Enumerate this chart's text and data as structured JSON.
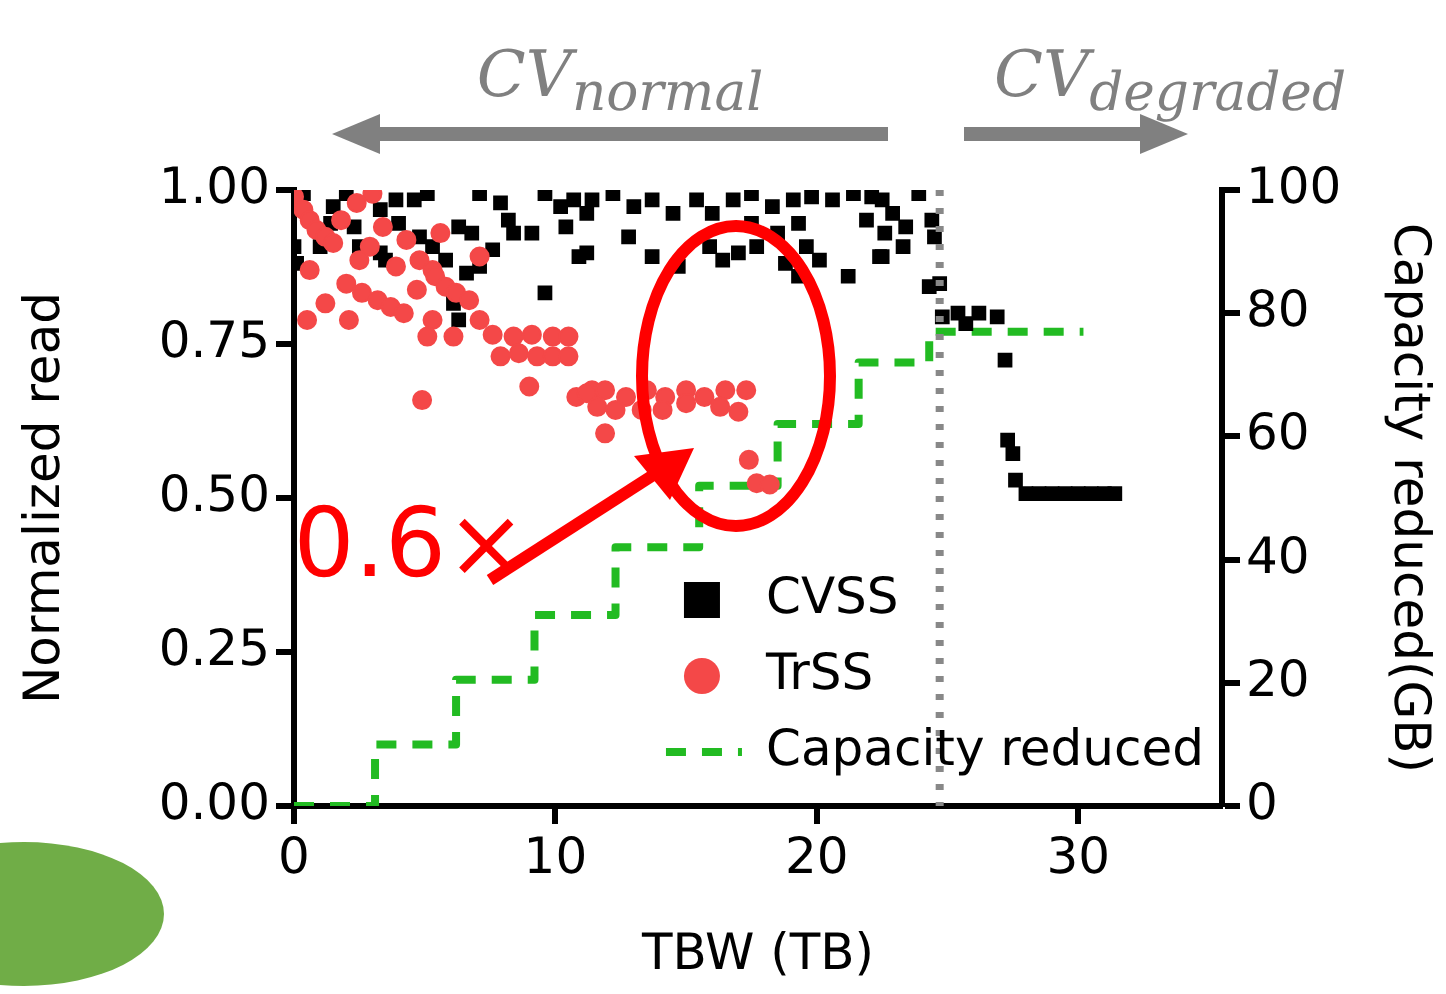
{
  "chart_data": {
    "type": "scatter",
    "xlabel": "TBW (TB)",
    "ylabel": "Normalized read",
    "y2label": "Capacity reduced(GB)",
    "annotations": [
      "CV$_{normal}$",
      "CV$_{degraded}$",
      "0.6×"
    ],
    "xlim": [
      0,
      35.5
    ],
    "xticks": [
      0,
      10,
      20,
      30
    ],
    "ylim": [
      0,
      1
    ],
    "yticks": [
      {
        "value": 0,
        "label": "0.00"
      },
      {
        "value": 0.25,
        "label": "0.25"
      },
      {
        "value": 0.5,
        "label": "0.50"
      },
      {
        "value": 0.75,
        "label": "0.75"
      },
      {
        "value": 1,
        "label": "1.00"
      }
    ],
    "y2lim": [
      0,
      100
    ],
    "y2ticks": [
      0,
      20,
      40,
      60,
      80,
      100
    ],
    "grid": false,
    "legend": "bottom right",
    "ref_lines": [
      {
        "axis": "x",
        "value": 24.7,
        "color": "#888888",
        "line_style": "dotted"
      }
    ],
    "series": [
      {
        "name": "CVSS",
        "type": "scatter",
        "color": "#000000",
        "marker": "square",
        "x": [
          0.36,
          0,
          0.1,
          1.5,
          2.0,
          2.3,
          3.3,
          3.9,
          4.6,
          5.1,
          4.0,
          4.8,
          3.3,
          3.5,
          2.5,
          1.0,
          1.4,
          5.3,
          5.8,
          6.3,
          6.8,
          7.1,
          7.9,
          8.2,
          7.1,
          7.6,
          6.6,
          6.3,
          6.1,
          9.6,
          10.2,
          10.7,
          11.2,
          10.4,
          10.9,
          9.6,
          9.1,
          8.4,
          11.4,
          12.2,
          13.0,
          13.7,
          14.5,
          15.4,
          16.0,
          16.8,
          17.5,
          18.3,
          19.1,
          19.8,
          20.6,
          21.4,
          22.1,
          22.9,
          11.2,
          12.8,
          13.7,
          14.7,
          15.9,
          16.4,
          17.0,
          17.7,
          18.5,
          18.8,
          19.3,
          19.6,
          20.1,
          21.2,
          22.4,
          21.9,
          17.5,
          19.3,
          22.5,
          23.9,
          24.4,
          23.4,
          22.6,
          23.3,
          22.5,
          24.5,
          24.3,
          24.7,
          24.8,
          25.4,
          26.2,
          26.9,
          25.7,
          27.2,
          27.3,
          27.5,
          27.6,
          28,
          28.5,
          29,
          29.5,
          30,
          30.5,
          31,
          31.4
        ],
        "values": [
          0.994,
          0.908,
          0.881,
          0.973,
          0.994,
          0.94,
          0.968,
          0.984,
          0.984,
          0.994,
          0.946,
          0.924,
          0.898,
          0.886,
          0.908,
          0.908,
          0.946,
          0.908,
          0.886,
          0.94,
          0.93,
          0.994,
          0.979,
          0.951,
          0.876,
          0.903,
          0.865,
          0.789,
          0.816,
          0.994,
          0.973,
          0.984,
          0.962,
          0.94,
          0.892,
          0.833,
          0.93,
          0.93,
          0.984,
          0.994,
          0.973,
          0.984,
          0.962,
          0.984,
          0.962,
          0.984,
          0.994,
          0.973,
          0.984,
          0.989,
          0.984,
          0.994,
          0.989,
          0.962,
          0.898,
          0.924,
          0.892,
          0.876,
          0.908,
          0.886,
          0.898,
          0.908,
          0.93,
          0.881,
          0.86,
          0.908,
          0.886,
          0.86,
          0.892,
          0.951,
          0.946,
          0.946,
          0.984,
          0.994,
          0.951,
          0.94,
          0.93,
          0.908,
          0.892,
          0.924,
          0.843,
          0.848,
          0.794,
          0.8,
          0.8,
          0.794,
          0.783,
          0.724,
          0.594,
          0.572,
          0.529,
          0.507,
          0.507,
          0.507,
          0.507,
          0.507,
          0.507,
          0.507,
          0.507
        ]
      },
      {
        "name": "TrSS",
        "type": "scatter",
        "color": "#f44848",
        "marker": "circle",
        "x": [
          0,
          0.36,
          0.6,
          0.86,
          1.2,
          1.8,
          3.0,
          2.4,
          1.5,
          0.6,
          0.5,
          1.2,
          2.1,
          2.0,
          2.6,
          2.9,
          3.4,
          2.5,
          3.2,
          3.7,
          3.9,
          4.2,
          4.3,
          4.7,
          4.8,
          5.6,
          5.3,
          5.4,
          5.8,
          6.2,
          6.7,
          5.3,
          5.1,
          6.1,
          7.1,
          7.1,
          7.6,
          8.4,
          9.1,
          9.9,
          10.5,
          7.9,
          8.6,
          9.3,
          9.9,
          10.5,
          4.9,
          9.0,
          10.8,
          11.4,
          11.2,
          11.9,
          12.7,
          13.5,
          14.2,
          15.0,
          15.7,
          16.5,
          17.3,
          11.6,
          12.3,
          13.3,
          14.1,
          15.0,
          16.3,
          17.0,
          11.9,
          17.4,
          17.7,
          18.2
        ],
        "values": [
          0.989,
          0.968,
          0.951,
          0.935,
          0.924,
          0.951,
          0.994,
          0.979,
          0.914,
          0.87,
          0.789,
          0.816,
          0.789,
          0.848,
          0.833,
          0.908,
          0.94,
          0.886,
          0.821,
          0.81,
          0.876,
          0.8,
          0.919,
          0.838,
          0.886,
          0.93,
          0.87,
          0.86,
          0.843,
          0.833,
          0.821,
          0.789,
          0.762,
          0.762,
          0.892,
          0.789,
          0.765,
          0.762,
          0.765,
          0.762,
          0.762,
          0.73,
          0.735,
          0.73,
          0.73,
          0.73,
          0.659,
          0.681,
          0.664,
          0.675,
          0.67,
          0.675,
          0.664,
          0.675,
          0.664,
          0.675,
          0.664,
          0.675,
          0.675,
          0.648,
          0.643,
          0.643,
          0.643,
          0.654,
          0.648,
          0.64,
          0.605,
          0.562,
          0.524,
          0.522
        ]
      },
      {
        "name": "Capacity reduced",
        "type": "step",
        "axis": "y2",
        "color": "#22bb22",
        "marker": "none",
        "line_style": "dashed",
        "x": [
          0,
          3.1,
          6.2,
          9.2,
          12.3,
          15.5,
          18.5,
          21.6,
          24.3,
          30.2
        ],
        "values": [
          0,
          10,
          20.5,
          31,
          42,
          52,
          62,
          72,
          77,
          77
        ]
      }
    ]
  }
}
